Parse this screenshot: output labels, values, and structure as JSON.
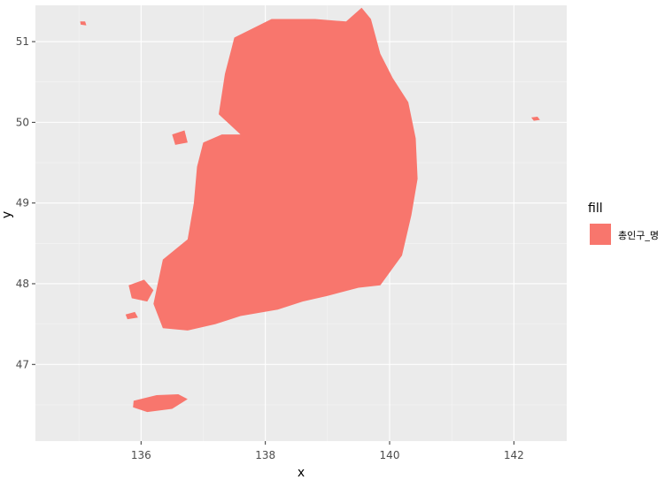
{
  "chart_data": {
    "type": "map",
    "xlabel": "x",
    "ylabel": "y",
    "xlim": [
      134.3,
      142.85
    ],
    "ylim": [
      46.05,
      51.45
    ],
    "x_ticks": [
      136,
      138,
      140,
      142
    ],
    "x_tick_labels": [
      "136",
      "138",
      "140",
      "142"
    ],
    "y_ticks": [
      47,
      48,
      49,
      50,
      51
    ],
    "y_tick_labels": [
      "47",
      "48",
      "49",
      "50",
      "51"
    ],
    "x_minor": [
      135,
      137,
      139,
      141
    ],
    "y_minor": [
      46.5,
      47.5,
      48.5,
      49.5,
      50.5
    ],
    "grid": true,
    "legend": {
      "title": "fill",
      "position": "right",
      "entries": [
        {
          "label": "총인구_명",
          "color": "#F8766D"
        }
      ]
    },
    "colors": {
      "fill": "#F8766D",
      "panel": "#EBEBEB",
      "grid_major": "#FFFFFF",
      "grid_minor": "#F5F5F5"
    },
    "regions": [
      {
        "name": "mainland",
        "points": [
          [
            137.5,
            51.05
          ],
          [
            138.1,
            51.28
          ],
          [
            138.8,
            51.28
          ],
          [
            139.3,
            51.25
          ],
          [
            139.55,
            51.42
          ],
          [
            139.7,
            51.28
          ],
          [
            139.85,
            50.85
          ],
          [
            140.05,
            50.55
          ],
          [
            140.3,
            50.25
          ],
          [
            140.42,
            49.8
          ],
          [
            140.45,
            49.3
          ],
          [
            140.35,
            48.85
          ],
          [
            140.2,
            48.35
          ],
          [
            139.85,
            47.98
          ],
          [
            139.5,
            47.95
          ],
          [
            139.0,
            47.85
          ],
          [
            138.6,
            47.78
          ],
          [
            138.2,
            47.68
          ],
          [
            137.6,
            47.6
          ],
          [
            137.2,
            47.5
          ],
          [
            136.75,
            47.42
          ],
          [
            136.35,
            47.45
          ],
          [
            136.2,
            47.75
          ],
          [
            136.35,
            48.3
          ],
          [
            136.75,
            48.55
          ],
          [
            136.85,
            49.0
          ],
          [
            136.9,
            49.45
          ],
          [
            137.0,
            49.75
          ],
          [
            137.3,
            49.85
          ],
          [
            137.6,
            49.85
          ],
          [
            137.25,
            50.1
          ],
          [
            137.35,
            50.6
          ],
          [
            137.45,
            50.9
          ]
        ]
      },
      {
        "name": "jeju",
        "points": [
          [
            135.88,
            46.55
          ],
          [
            136.25,
            46.62
          ],
          [
            136.6,
            46.63
          ],
          [
            136.75,
            46.57
          ],
          [
            136.5,
            46.45
          ],
          [
            136.1,
            46.41
          ],
          [
            135.87,
            46.47
          ]
        ]
      },
      {
        "name": "ulleung",
        "points": [
          [
            142.28,
            50.06
          ],
          [
            142.38,
            50.07
          ],
          [
            142.42,
            50.03
          ],
          [
            142.32,
            50.02
          ]
        ]
      },
      {
        "name": "northwest-island",
        "points": [
          [
            135.02,
            51.25
          ],
          [
            135.1,
            51.25
          ],
          [
            135.12,
            51.2
          ],
          [
            135.03,
            51.21
          ]
        ]
      },
      {
        "name": "southwest-islands",
        "points": [
          [
            135.8,
            47.98
          ],
          [
            136.05,
            48.05
          ],
          [
            136.2,
            47.92
          ],
          [
            136.1,
            47.78
          ],
          [
            135.85,
            47.82
          ]
        ]
      },
      {
        "name": "southwest-islet",
        "points": [
          [
            135.75,
            47.62
          ],
          [
            135.9,
            47.65
          ],
          [
            135.95,
            47.58
          ],
          [
            135.78,
            47.56
          ]
        ]
      },
      {
        "name": "west-island",
        "points": [
          [
            136.5,
            49.85
          ],
          [
            136.7,
            49.9
          ],
          [
            136.75,
            49.75
          ],
          [
            136.55,
            49.72
          ]
        ]
      }
    ]
  }
}
